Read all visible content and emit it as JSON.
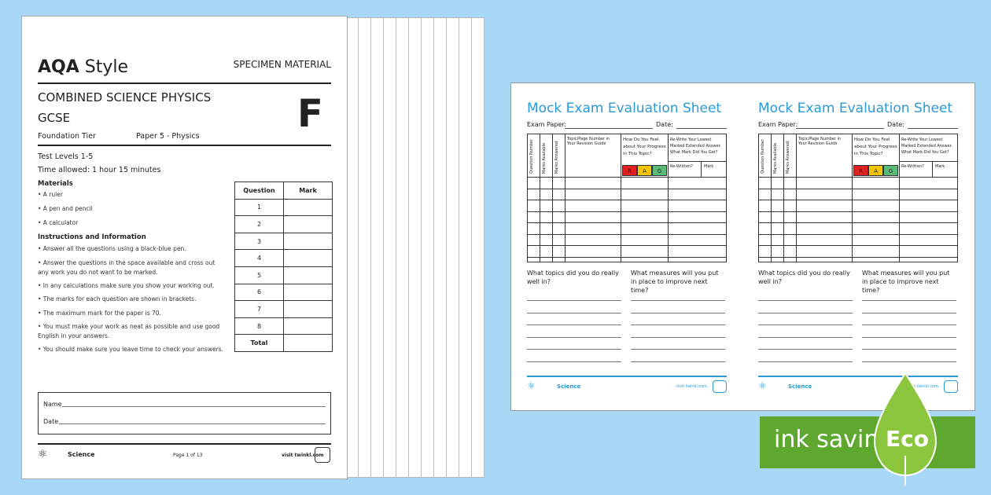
{
  "front_page": {
    "brand": "AQA",
    "brand_suffix": "Style",
    "specimen": "SPECIMEN MATERIAL",
    "subject": "COMBINED SCIENCE PHYSICS",
    "level": "GCSE",
    "tier_letter": "F",
    "tier": "Foundation Tier",
    "paper": "Paper 5 - Physics",
    "test_levels": "Test Levels 1-5",
    "time_allowed": "Time allowed: 1 hour 15 minutes",
    "materials_title": "Materials",
    "materials": [
      "• A ruler",
      "• A pen and pencil",
      "• A calculator"
    ],
    "instructions_title": "Instructions and Information",
    "instructions": [
      "• Answer all the questions using a black-blue pen.",
      "• Answer the questions in the space available and cross out any work you do not want to be marked.",
      "• In any calculations make sure you show your working out.",
      "• The marks for each question are shown in brackets.",
      "• The maximum mark for the paper is 70.",
      "• You must make your work as neat as possible and use good English in your answers.",
      "• You should make sure you leave time to check your answers."
    ],
    "table_headers": [
      "Question",
      "Mark"
    ],
    "questions": [
      "1",
      "2",
      "3",
      "4",
      "5",
      "6",
      "7",
      "8",
      "Total"
    ],
    "name_label": "Name",
    "date_label": "Date",
    "footer_subject": "Science",
    "footer_page": "Page 1 of 13",
    "footer_site": "visit twinkl.com"
  },
  "evaluation_sheet": {
    "title": "Mock Exam Evaluation Sheet",
    "exam_paper_label": "Exam Paper:",
    "date_label": "Date:",
    "columns": [
      "Question Number",
      "Marks Available",
      "Marks Answered",
      "Topic/Page Number in Your Revision Guide",
      "How Do You Feel about Your Progress in This Topic?",
      "Re-Write Your Lowest Marked Extended Answer. What Mark Did You Get?"
    ],
    "subcolumns": [
      "Re-Written?",
      "Mark"
    ],
    "rag": [
      "R",
      "A",
      "G"
    ],
    "rag_colors": [
      "#e02020",
      "#f2c500",
      "#5cba78"
    ],
    "question_left": "What topics did you do really well in?",
    "question_right": "What measures will you put in place to improve next time?",
    "footer_subject": "Science",
    "footer_site": "visit twinkl.com"
  },
  "badge": {
    "text": "ink saving",
    "leaf": "Eco",
    "color": "#5fa82f"
  }
}
